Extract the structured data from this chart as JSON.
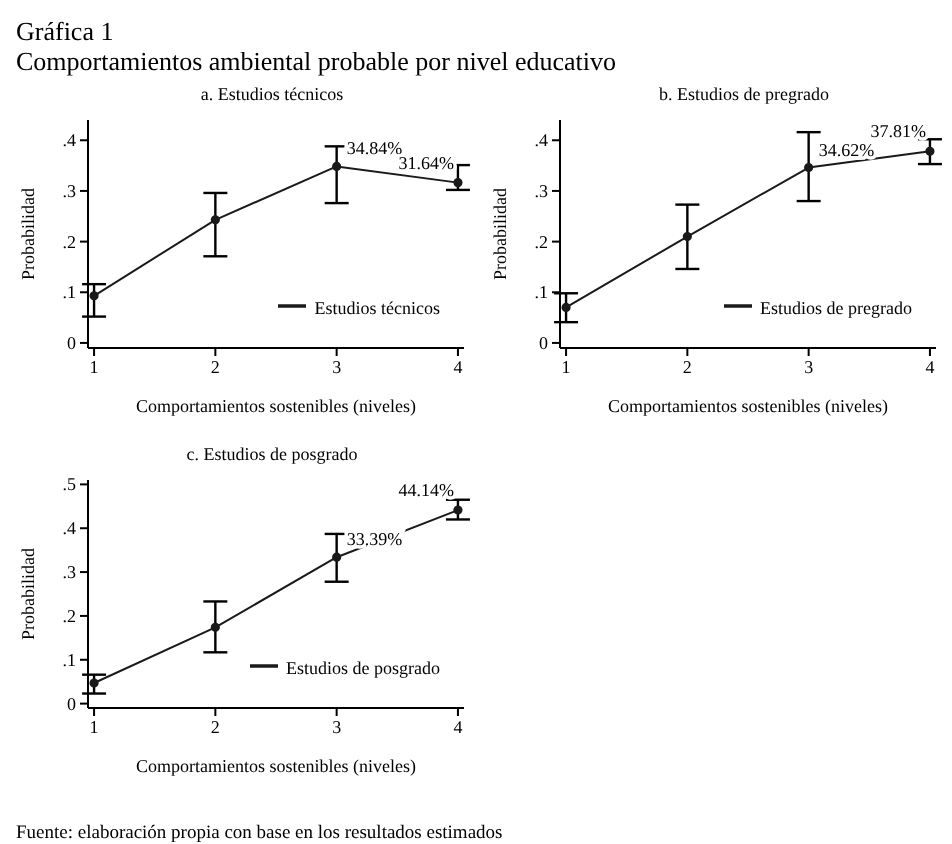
{
  "chart_data": [
    {
      "type": "line",
      "title": "a. Estudios técnicos",
      "xlabel": "Comportamientos sostenibles (niveles)",
      "ylabel": "Probabilidad",
      "annotations": [
        "Gráfica 1",
        "Comportamientos ambiental probable por nivel educativo"
      ],
      "x": [
        1,
        2,
        3,
        4
      ],
      "xlim": [
        0.95,
        4.05
      ],
      "xticks": [
        1,
        2,
        3,
        4
      ],
      "ylim": [
        -0.01,
        0.44
      ],
      "yticks": [
        {
          "value": 0,
          "label": "0"
        },
        {
          "value": 0.1,
          "label": ".1"
        },
        {
          "value": 0.2,
          "label": ".2"
        },
        {
          "value": 0.3,
          "label": ".3"
        },
        {
          "value": 0.4,
          "label": ".4"
        }
      ],
      "series": [
        {
          "name": "Estudios técnicos",
          "color": "#1a1a1a",
          "values": [
            0.093,
            0.243,
            0.3484,
            0.3164
          ],
          "errors": [
            [
              0.052,
              0.116
            ],
            [
              0.171,
              0.296
            ],
            [
              0.276,
              0.388
            ],
            [
              0.302,
              0.351
            ]
          ],
          "value_labels": [
            null,
            null,
            "34.84%",
            "31.64%"
          ]
        }
      ],
      "marker": "circle",
      "legend": "bottom right",
      "grid": false
    },
    {
      "type": "line",
      "title": "b. Estudios de pregrado",
      "xlabel": "Comportamientos sostenibles (niveles)",
      "ylabel": "Probabilidad",
      "x": [
        1,
        2,
        3,
        4
      ],
      "xlim": [
        0.95,
        4.05
      ],
      "xticks": [
        1,
        2,
        3,
        4
      ],
      "ylim": [
        -0.01,
        0.44
      ],
      "yticks": [
        {
          "value": 0,
          "label": "0"
        },
        {
          "value": 0.1,
          "label": ".1"
        },
        {
          "value": 0.2,
          "label": ".2"
        },
        {
          "value": 0.3,
          "label": ".3"
        },
        {
          "value": 0.4,
          "label": ".4"
        }
      ],
      "series": [
        {
          "name": "Estudios de pregrado",
          "color": "#1a1a1a",
          "values": [
            0.07,
            0.21,
            0.3462,
            0.3781
          ],
          "errors": [
            [
              0.041,
              0.098
            ],
            [
              0.146,
              0.273
            ],
            [
              0.28,
              0.416
            ],
            [
              0.353,
              0.402
            ]
          ],
          "value_labels": [
            null,
            null,
            "34.62%",
            "37.81%"
          ]
        }
      ],
      "marker": "circle",
      "legend": "bottom right",
      "grid": false
    },
    {
      "type": "line",
      "title": "c. Estudios de posgrado",
      "xlabel": "Comportamientos sostenibles (niveles)",
      "ylabel": "Probabilidad",
      "annotations": [
        "Fuente: elaboración propia con base en los resultados estimados"
      ],
      "x": [
        1,
        2,
        3,
        4
      ],
      "xlim": [
        0.95,
        4.05
      ],
      "xticks": [
        1,
        2,
        3,
        4
      ],
      "ylim": [
        -0.01,
        0.51
      ],
      "yticks": [
        {
          "value": 0,
          "label": "0"
        },
        {
          "value": 0.1,
          "label": ".1"
        },
        {
          "value": 0.2,
          "label": ".2"
        },
        {
          "value": 0.3,
          "label": ".3"
        },
        {
          "value": 0.4,
          "label": ".4"
        },
        {
          "value": 0.5,
          "label": ".5"
        }
      ],
      "series": [
        {
          "name": "Estudios de posgrado",
          "color": "#1a1a1a",
          "values": [
            0.047,
            0.174,
            0.3339,
            0.4414
          ],
          "errors": [
            [
              0.023,
              0.066
            ],
            [
              0.117,
              0.233
            ],
            [
              0.278,
              0.387
            ],
            [
              0.42,
              0.465
            ]
          ],
          "value_labels": [
            null,
            null,
            "33.39%",
            "44.14%"
          ]
        }
      ],
      "marker": "circle",
      "legend": "bottom right",
      "grid": false
    }
  ]
}
